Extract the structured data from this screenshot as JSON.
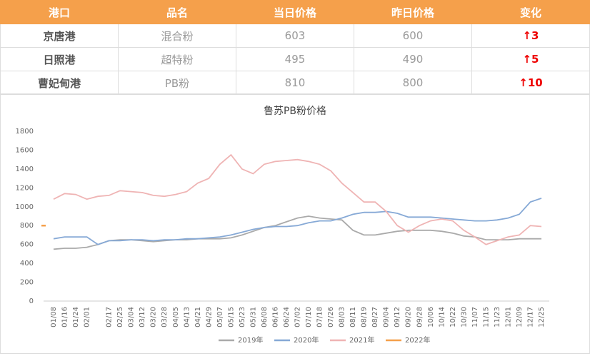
{
  "table": {
    "header": [
      "港口",
      "品名",
      "当日价格",
      "昨日价格",
      "变化"
    ],
    "rows": [
      [
        "京唐港",
        "混合粉",
        "603",
        "600",
        "↑3"
      ],
      [
        "日照港",
        "超特粉",
        "495",
        "490",
        "↑5"
      ],
      [
        "曹妃甸港",
        "PB粉",
        "810",
        "800",
        "↑10"
      ]
    ]
  },
  "chart_data": {
    "type": "line",
    "title": "鲁苏PB粉价格",
    "categories": [
      "01/08",
      "01/16",
      "01/24",
      "02/01",
      null,
      "02/17",
      "02/25",
      "03/04",
      "03/12",
      "03/20",
      "03/28",
      "04/05",
      "04/13",
      "04/21",
      "04/29",
      "05/07",
      "05/15",
      "05/23",
      "05/31",
      "06/08",
      "06/16",
      "06/24",
      "07/02",
      "07/10",
      "07/18",
      "07/26",
      "08/03",
      "08/11",
      "08/19",
      "08/27",
      "09/04",
      "09/12",
      "09/20",
      "09/28",
      "10/06",
      "10/14",
      "10/22",
      "10/30",
      "11/07",
      "11/15",
      "11/23",
      "12/01",
      "12/09",
      "12/17",
      "12/25"
    ],
    "ylim": [
      0,
      1800
    ],
    "yticks": [
      0,
      200,
      400,
      600,
      800,
      1000,
      1200,
      1400,
      1600,
      1800
    ],
    "series": [
      {
        "name": "2019年",
        "color": "#aaaaaa",
        "values": [
          550,
          560,
          560,
          570,
          600,
          640,
          650,
          650,
          640,
          630,
          640,
          650,
          650,
          660,
          660,
          660,
          670,
          700,
          740,
          780,
          800,
          840,
          880,
          900,
          880,
          870,
          860,
          750,
          700,
          700,
          720,
          740,
          750,
          750,
          750,
          740,
          720,
          690,
          680,
          650,
          650,
          650,
          660,
          660,
          660
        ]
      },
      {
        "name": "2020年",
        "color": "#86a9d6",
        "values": [
          660,
          680,
          680,
          680,
          600,
          640,
          640,
          650,
          650,
          640,
          650,
          650,
          660,
          660,
          670,
          680,
          700,
          730,
          760,
          780,
          790,
          790,
          800,
          830,
          850,
          850,
          880,
          920,
          940,
          940,
          950,
          930,
          890,
          890,
          890,
          880,
          870,
          860,
          850,
          850,
          860,
          880,
          920,
          1050,
          1090
        ]
      },
      {
        "name": "2021年",
        "color": "#efb4b4",
        "values": [
          1080,
          1140,
          1130,
          1080,
          1110,
          1120,
          1170,
          1160,
          1150,
          1120,
          1110,
          1130,
          1160,
          1250,
          1300,
          1450,
          1550,
          1400,
          1350,
          1450,
          1480,
          1490,
          1500,
          1480,
          1450,
          1380,
          1250,
          1150,
          1050,
          1050,
          950,
          800,
          730,
          800,
          850,
          870,
          850,
          750,
          680,
          600,
          640,
          680,
          700,
          800,
          790
        ]
      },
      {
        "name": "2022年",
        "color": "#f5a04b",
        "values": [
          800,
          null,
          null,
          null,
          null,
          null,
          null,
          null,
          null,
          null,
          null,
          null,
          null,
          null,
          null,
          null,
          null,
          null,
          null,
          null,
          null,
          null,
          null,
          null,
          null,
          null,
          null,
          null,
          null,
          null,
          null,
          null,
          null,
          null,
          null,
          null,
          null,
          null,
          null,
          null,
          null,
          null,
          null,
          null,
          null
        ]
      }
    ]
  }
}
